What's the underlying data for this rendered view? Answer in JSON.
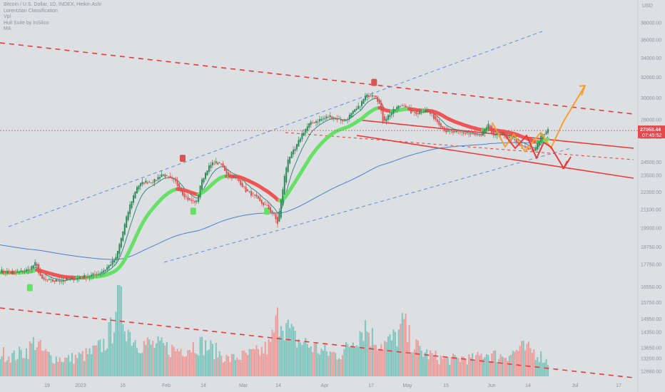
{
  "legend": {
    "title": "Bitcoin / U.S. Dollar, 1D, INDEX, Heikin Ashi",
    "indicators": [
      "Lorentzian Classification",
      "Vpl",
      "Hull Suite by InSilico",
      "MA"
    ]
  },
  "colors": {
    "background": "#dde0e3",
    "bull": "#2e8b57",
    "bear": "#d9534f",
    "hull_bull": "#66e066",
    "hull_bear": "#ee5555",
    "ma": "#4a7fd4",
    "trend_red": "#ea3a3a",
    "trend_blue": "#5b8fe0",
    "projection_orange": "#f5a02a",
    "projection_red": "#ea3a3a",
    "price_label_bg": "#e5484d",
    "vol_up": "#7bc4bc",
    "vol_down": "#ec9a98"
  },
  "chart_data": {
    "type": "candlestick",
    "title": "Bitcoin / U.S. Dollar, 1D, INDEX, Heikin Ashi",
    "currency": "USD",
    "y_scale": "log",
    "ylim": [
      12500,
      40000
    ],
    "yticks": [
      "38000.00",
      "36000.00",
      "34000.00",
      "32000.00",
      "30000.00",
      "28000.00",
      "26500.00",
      "24500.00",
      "23500.00",
      "22300.00",
      "21100.00",
      "19900.00",
      "18750.00",
      "17750.00",
      "16550.00",
      "15750.00",
      "14950.00",
      "14350.00",
      "13650.00",
      "13200.00",
      "12680.00"
    ],
    "xticks": [
      "19",
      "2023",
      "16",
      "Feb",
      "14",
      "Mar",
      "14",
      "Apr",
      "17",
      "May",
      "15",
      "Jun",
      "14",
      "Jul",
      "17"
    ],
    "last_price": "27068.44",
    "countdown": "07:45:52",
    "price_path": [
      [
        0,
        17400
      ],
      [
        8,
        17250
      ],
      [
        16,
        17450
      ],
      [
        20,
        17800
      ],
      [
        24,
        16900
      ],
      [
        30,
        16850
      ],
      [
        38,
        16900
      ],
      [
        46,
        17050
      ],
      [
        52,
        17150
      ],
      [
        56,
        17250
      ],
      [
        60,
        17500
      ],
      [
        66,
        18100
      ],
      [
        70,
        19700
      ],
      [
        74,
        21400
      ],
      [
        78,
        22700
      ],
      [
        82,
        23000
      ],
      [
        88,
        23100
      ],
      [
        92,
        23600
      ],
      [
        96,
        23300
      ],
      [
        100,
        23000
      ],
      [
        104,
        22200
      ],
      [
        108,
        21700
      ],
      [
        112,
        21600
      ],
      [
        114,
        22800
      ],
      [
        118,
        24000
      ],
      [
        122,
        24500
      ],
      [
        126,
        24300
      ],
      [
        130,
        23500
      ],
      [
        134,
        23300
      ],
      [
        136,
        23100
      ],
      [
        140,
        22400
      ],
      [
        144,
        22100
      ],
      [
        148,
        21600
      ],
      [
        152,
        21300
      ],
      [
        156,
        20700
      ],
      [
        158,
        20200
      ],
      [
        160,
        21700
      ],
      [
        162,
        23400
      ],
      [
        164,
        24800
      ],
      [
        168,
        25500
      ],
      [
        172,
        26800
      ],
      [
        176,
        27600
      ],
      [
        180,
        27900
      ],
      [
        184,
        28100
      ],
      [
        188,
        28300
      ],
      [
        192,
        28100
      ],
      [
        196,
        27900
      ],
      [
        200,
        28500
      ],
      [
        204,
        29100
      ],
      [
        208,
        30100
      ],
      [
        212,
        30400
      ],
      [
        214,
        30200
      ],
      [
        216,
        29400
      ],
      [
        218,
        27900
      ],
      [
        222,
        28500
      ],
      [
        226,
        29100
      ],
      [
        230,
        29400
      ],
      [
        234,
        28700
      ],
      [
        238,
        28600
      ],
      [
        242,
        28900
      ],
      [
        246,
        28400
      ],
      [
        250,
        27700
      ],
      [
        254,
        27000
      ],
      [
        258,
        26900
      ],
      [
        262,
        26900
      ],
      [
        266,
        26800
      ],
      [
        270,
        26700
      ],
      [
        274,
        26500
      ],
      [
        276,
        27200
      ],
      [
        278,
        27500
      ],
      [
        280,
        26800
      ],
      [
        284,
        26700
      ],
      [
        288,
        26600
      ],
      [
        292,
        26300
      ],
      [
        296,
        25800
      ],
      [
        300,
        25600
      ],
      [
        304,
        25400
      ],
      [
        306,
        26000
      ],
      [
        308,
        26500
      ],
      [
        310,
        26800
      ],
      [
        312,
        27068
      ]
    ],
    "volume_path": [
      [
        0,
        0.3
      ],
      [
        8,
        0.26
      ],
      [
        16,
        0.34
      ],
      [
        20,
        0.46
      ],
      [
        24,
        0.32
      ],
      [
        30,
        0.24
      ],
      [
        38,
        0.22
      ],
      [
        46,
        0.26
      ],
      [
        52,
        0.3
      ],
      [
        56,
        0.36
      ],
      [
        60,
        0.44
      ],
      [
        64,
        0.62
      ],
      [
        66,
        1.0
      ],
      [
        68,
        0.95
      ],
      [
        70,
        0.8
      ],
      [
        74,
        0.55
      ],
      [
        78,
        0.45
      ],
      [
        82,
        0.42
      ],
      [
        88,
        0.4
      ],
      [
        92,
        0.38
      ],
      [
        96,
        0.36
      ],
      [
        100,
        0.34
      ],
      [
        104,
        0.36
      ],
      [
        108,
        0.38
      ],
      [
        112,
        0.42
      ],
      [
        116,
        0.4
      ],
      [
        120,
        0.36
      ],
      [
        126,
        0.28
      ],
      [
        130,
        0.22
      ],
      [
        134,
        0.24
      ],
      [
        138,
        0.26
      ],
      [
        142,
        0.28
      ],
      [
        146,
        0.3
      ],
      [
        150,
        0.34
      ],
      [
        154,
        0.4
      ],
      [
        156,
        0.58
      ],
      [
        158,
        0.72
      ],
      [
        160,
        0.8
      ],
      [
        164,
        0.6
      ],
      [
        168,
        0.48
      ],
      [
        172,
        0.44
      ],
      [
        176,
        0.4
      ],
      [
        180,
        0.36
      ],
      [
        184,
        0.32
      ],
      [
        188,
        0.3
      ],
      [
        192,
        0.28
      ],
      [
        196,
        0.32
      ],
      [
        200,
        0.44
      ],
      [
        206,
        0.62
      ],
      [
        208,
        0.66
      ],
      [
        212,
        0.5
      ],
      [
        216,
        0.44
      ],
      [
        220,
        0.42
      ],
      [
        224,
        0.48
      ],
      [
        228,
        0.58
      ],
      [
        230,
        0.7
      ],
      [
        232,
        0.52
      ],
      [
        236,
        0.4
      ],
      [
        240,
        0.32
      ],
      [
        244,
        0.28
      ],
      [
        248,
        0.25
      ],
      [
        252,
        0.22
      ],
      [
        256,
        0.22
      ],
      [
        260,
        0.22
      ],
      [
        264,
        0.24
      ],
      [
        268,
        0.22
      ],
      [
        272,
        0.24
      ],
      [
        276,
        0.3
      ],
      [
        280,
        0.28
      ],
      [
        284,
        0.26
      ],
      [
        288,
        0.28
      ],
      [
        292,
        0.3
      ],
      [
        296,
        0.36
      ],
      [
        300,
        0.34
      ],
      [
        304,
        0.32
      ],
      [
        308,
        0.26
      ],
      [
        312,
        0.18
      ]
    ]
  }
}
